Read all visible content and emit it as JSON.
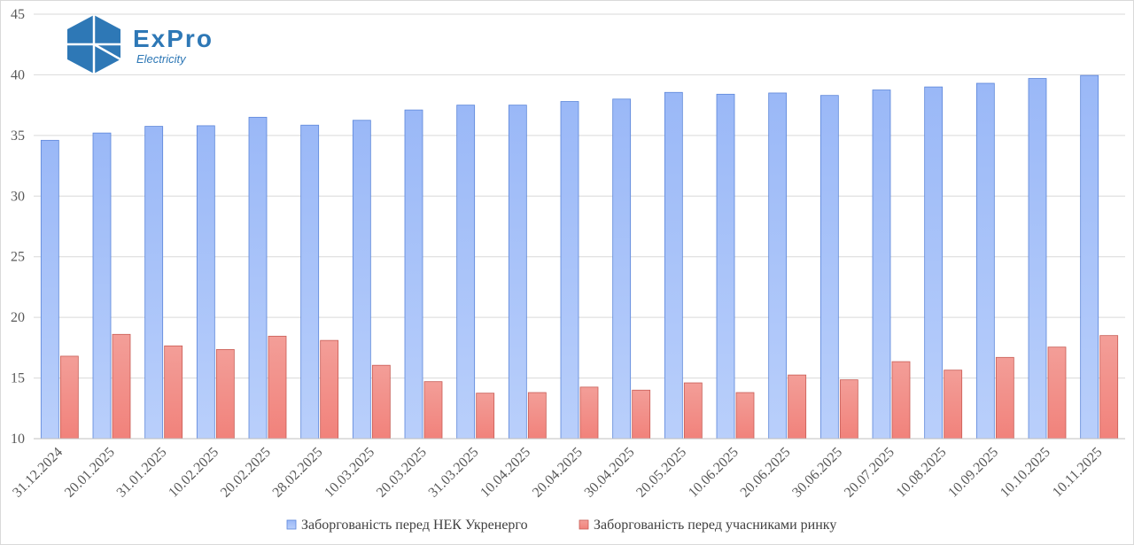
{
  "logo": {
    "brand": "ExPro",
    "subtitle": "Electricity"
  },
  "colors": {
    "series_1": "#9ebbf8",
    "series_1_stroke": "#5b85d9",
    "series_2": "#f29a94",
    "series_2_stroke": "#c85c55",
    "grid": "#d9d9d9",
    "logo": "#2e78b6"
  },
  "chart_data": {
    "type": "bar",
    "title": "",
    "xlabel": "",
    "ylabel": "",
    "ylim": [
      10,
      45
    ],
    "yticks": [
      10,
      15,
      20,
      25,
      30,
      35,
      40,
      45
    ],
    "grid": true,
    "legend_position": "bottom",
    "categories": [
      "31.12.2024",
      "20.01.2025",
      "31.01.2025",
      "10.02.2025",
      "20.02.2025",
      "28.02.2025",
      "10.03.2025",
      "20.03.2025",
      "31.03.2025",
      "10.04.2025",
      "20.04.2025",
      "30.04.2025",
      "20.05.2025",
      "10.06.2025",
      "20.06.2025",
      "30.06.2025",
      "20.07.2025",
      "10.08.2025",
      "10.09.2025",
      "10.10.2025",
      "10.11.2025"
    ],
    "series": [
      {
        "name": "Заборгованість перед НЕК Укренерго",
        "values": [
          34.6,
          35.2,
          35.75,
          35.8,
          36.5,
          35.85,
          36.25,
          37.1,
          37.5,
          37.5,
          37.8,
          38.0,
          38.55,
          38.4,
          38.5,
          38.3,
          38.75,
          39.0,
          39.3,
          39.7,
          39.95
        ]
      },
      {
        "name": "Заборгованість перед учасниками ринку",
        "values": [
          16.8,
          18.6,
          17.65,
          17.35,
          18.45,
          18.1,
          16.05,
          14.7,
          13.75,
          13.8,
          14.25,
          14.0,
          14.6,
          13.8,
          15.25,
          14.85,
          16.35,
          15.65,
          16.7,
          17.55,
          18.5
        ]
      }
    ]
  }
}
